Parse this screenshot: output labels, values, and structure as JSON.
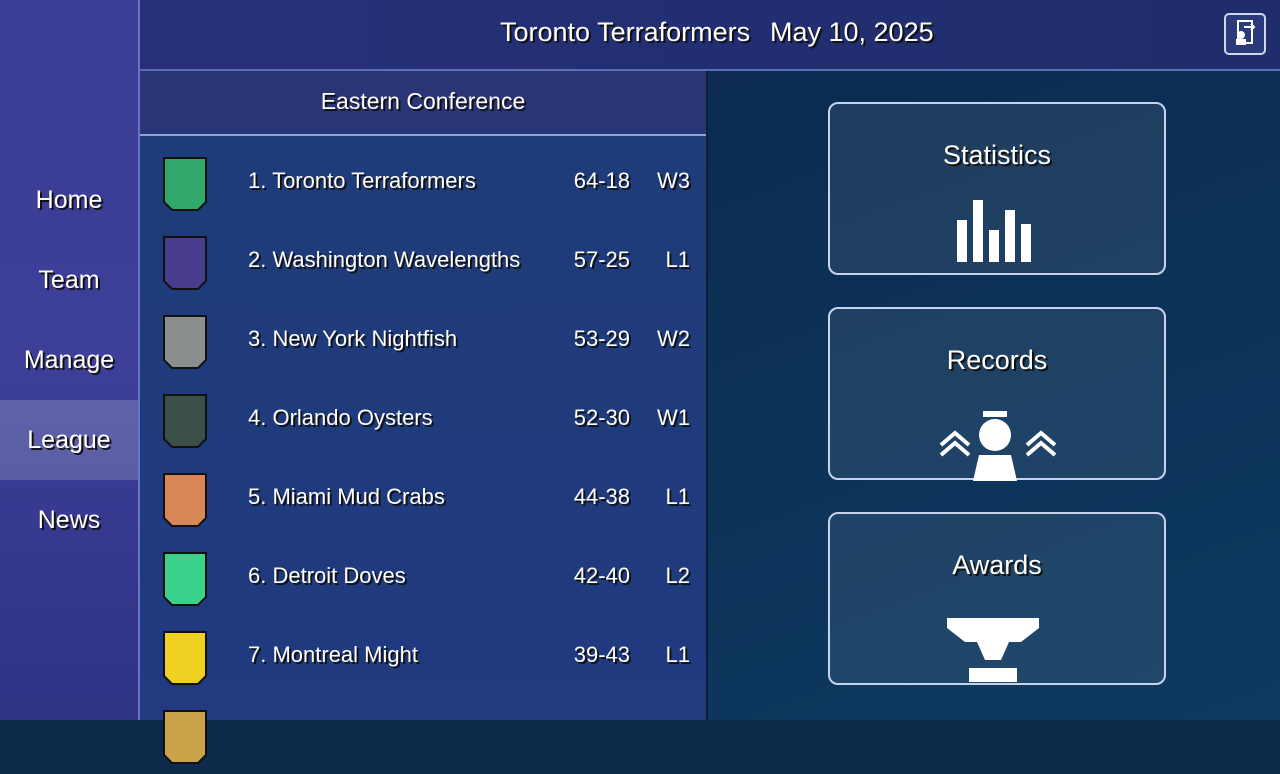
{
  "header": {
    "team": "Toronto Terraformers",
    "date": "May 10, 2025"
  },
  "nav": [
    "Home",
    "Team",
    "Manage",
    "League",
    "News"
  ],
  "active_nav": 3,
  "standings": {
    "title": "Eastern Conference",
    "rows": [
      [
        "1. Toronto Terraformers",
        "64-18",
        "W3"
      ],
      [
        "2. Washington Wavelengths",
        "57-25",
        "L1"
      ],
      [
        "3. New York Nightfish",
        "53-29",
        "W2"
      ],
      [
        "4. Orlando Oysters",
        "52-30",
        "W1"
      ],
      [
        "5. Miami Mud Crabs",
        "44-38",
        "L1"
      ],
      [
        "6. Detroit Doves",
        "42-40",
        "L2"
      ],
      [
        "7. Montreal Might",
        "39-43",
        "L1"
      ]
    ]
  },
  "buttons": [
    "Statistics",
    "Records",
    "Awards"
  ]
}
